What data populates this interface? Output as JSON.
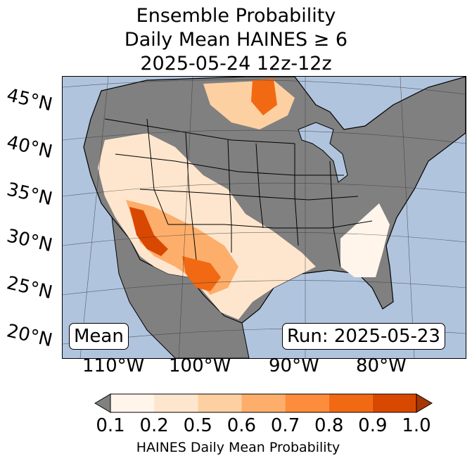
{
  "title": {
    "line1": "Ensemble Probability",
    "line2": "Daily Mean HAINES ≥ 6",
    "line3": "2025-05-24 12z-12z"
  },
  "map": {
    "ocean_color": "#b0c4de",
    "no_data_color": "#808080",
    "low_color": "#fff5eb",
    "lat_labels": [
      "45°N",
      "40°N",
      "35°N",
      "30°N",
      "25°N",
      "20°N"
    ],
    "lon_labels": [
      "110°W",
      "100°W",
      "90°W",
      "80°W"
    ],
    "left_box": "Mean",
    "right_box": "Run: 2025-05-23"
  },
  "colorbar": {
    "label": "HAINES Daily Mean Probability",
    "ticks": [
      "0.1",
      "0.2",
      "0.5",
      "0.6",
      "0.7",
      "0.8",
      "0.9",
      "1.0"
    ],
    "under_color": "#808080",
    "colors": [
      "#fff5eb",
      "#fee6ce",
      "#fdd0a2",
      "#fdae6b",
      "#fd8d3c",
      "#f16913",
      "#d94801"
    ],
    "over_color": "#a63603"
  }
}
